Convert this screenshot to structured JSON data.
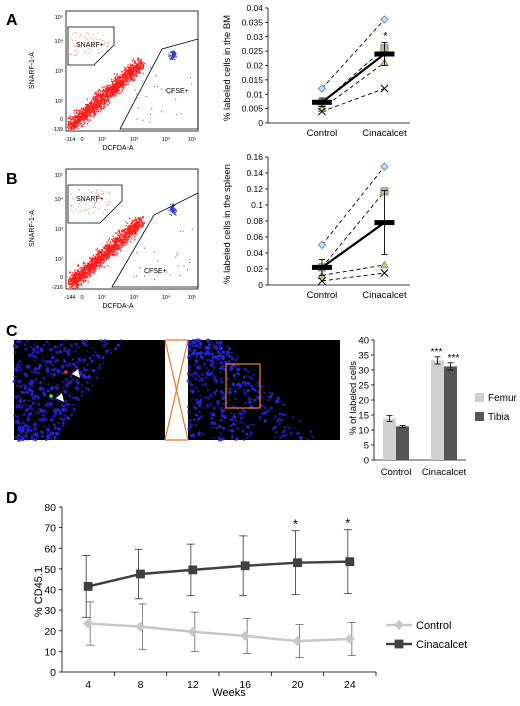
{
  "panels": {
    "a": "A",
    "b": "B",
    "c": "C",
    "d": "D"
  },
  "flow_a": {
    "y_axis": "SNARF-1-A",
    "x_axis": "DCFDA-A",
    "gate_top": "SNARF+",
    "gate_right": "CFSE+",
    "x_ticks": [
      "-114",
      "0",
      "10²",
      "10³",
      "10⁴",
      "10⁵"
    ],
    "y_ticks": [
      "-139",
      "0",
      "10²",
      "10³",
      "10⁴",
      "10⁵"
    ]
  },
  "flow_b": {
    "y_axis": "SNARF-1-A",
    "x_axis": "DCFDA-A",
    "gate_top": "SNARF+",
    "gate_right": "CFSE+",
    "x_ticks": [
      "-144",
      "0",
      "10²",
      "10³",
      "10⁴",
      "10⁵"
    ],
    "y_ticks": [
      "-216",
      "0",
      "10²",
      "10³",
      "10⁴",
      "10⁵"
    ]
  },
  "colors": {
    "flow_dense": "#ff1a1a",
    "flow_cfse": "#3a3acc",
    "micro_cells": "#2525d8",
    "zoom_box": "#e87722",
    "femur": "#d0d0d0",
    "tibia": "#555555",
    "control_line": "#c8c8c8",
    "cinacalcet_line": "#404040"
  },
  "chart_data": [
    {
      "id": "A",
      "type": "line",
      "ylabel": "% labeled cells in the BM",
      "categories": [
        "Control",
        "Cinacalcet"
      ],
      "ylim": [
        0,
        0.04
      ],
      "yticks": [
        "0",
        "0.005",
        "0.01",
        "0.015",
        "0.02",
        "0.025",
        "0.03",
        "0.035",
        "0.04"
      ],
      "paired": [
        {
          "marker": "diamond",
          "values": [
            0.012,
            0.036
          ]
        },
        {
          "marker": "square",
          "values": [
            0.007,
            0.026
          ]
        },
        {
          "marker": "triangle",
          "values": [
            0.005,
            0.021
          ]
        },
        {
          "marker": "x",
          "values": [
            0.004,
            0.012
          ]
        }
      ],
      "mean": [
        0.0072,
        0.024
      ],
      "error": [
        0.0015,
        0.004
      ],
      "significance": [
        "",
        "*"
      ]
    },
    {
      "id": "B",
      "type": "line",
      "ylabel": "% labeled cells in the spleen",
      "categories": [
        "Control",
        "Cinacalcet"
      ],
      "ylim": [
        0,
        0.16
      ],
      "yticks": [
        "0",
        "0.02",
        "0.04",
        "0.06",
        "0.08",
        "0.1",
        "0.12",
        "0.14",
        "0.16"
      ],
      "paired": [
        {
          "marker": "diamond",
          "values": [
            0.05,
            0.148
          ]
        },
        {
          "marker": "square",
          "values": [
            0.022,
            0.117
          ]
        },
        {
          "marker": "triangle",
          "values": [
            0.012,
            0.025
          ]
        },
        {
          "marker": "x",
          "values": [
            0.005,
            0.015
          ]
        }
      ],
      "mean": [
        0.022,
        0.078
      ],
      "error": [
        0.01,
        0.04
      ],
      "significance": [
        "",
        ""
      ]
    },
    {
      "id": "C",
      "type": "bar",
      "ylabel": "% of labeled cells",
      "categories": [
        "Control",
        "Cinacalcet"
      ],
      "ylim": [
        0,
        40
      ],
      "yticks": [
        "0",
        "5",
        "10",
        "15",
        "20",
        "25",
        "30",
        "35",
        "40"
      ],
      "series": [
        {
          "name": "Femur",
          "values": [
            13.8,
            33.2
          ],
          "error": [
            1.0,
            1.2
          ],
          "sig": [
            "",
            "***"
          ]
        },
        {
          "name": "Tibia",
          "values": [
            11.2,
            31.2
          ],
          "error": [
            0.3,
            1.2
          ],
          "sig": [
            "",
            "***"
          ]
        }
      ],
      "legend": "right"
    },
    {
      "id": "D",
      "type": "line",
      "xlabel": "Weeks",
      "ylabel": "% CD45.1",
      "x": [
        4,
        8,
        12,
        16,
        20,
        24
      ],
      "xticks": [
        "4",
        "8",
        "12",
        "16",
        "20",
        "24"
      ],
      "ylim": [
        0,
        80
      ],
      "yticks": [
        "0",
        "10",
        "20",
        "30",
        "40",
        "50",
        "60",
        "70",
        "80"
      ],
      "series": [
        {
          "name": "Control",
          "marker": "diamond",
          "values": [
            23.5,
            22,
            19.5,
            17.5,
            15,
            16
          ],
          "error": [
            10.5,
            11,
            9.5,
            8.5,
            8,
            8
          ]
        },
        {
          "name": "Cinacalcet",
          "marker": "square",
          "values": [
            41.5,
            47.5,
            49.5,
            51.5,
            53,
            53.5
          ],
          "error": [
            15,
            12,
            12.5,
            14.5,
            15.5,
            15.5
          ]
        }
      ],
      "significance": [
        "",
        "",
        "",
        "",
        "*",
        "*"
      ],
      "legend": "right"
    }
  ]
}
